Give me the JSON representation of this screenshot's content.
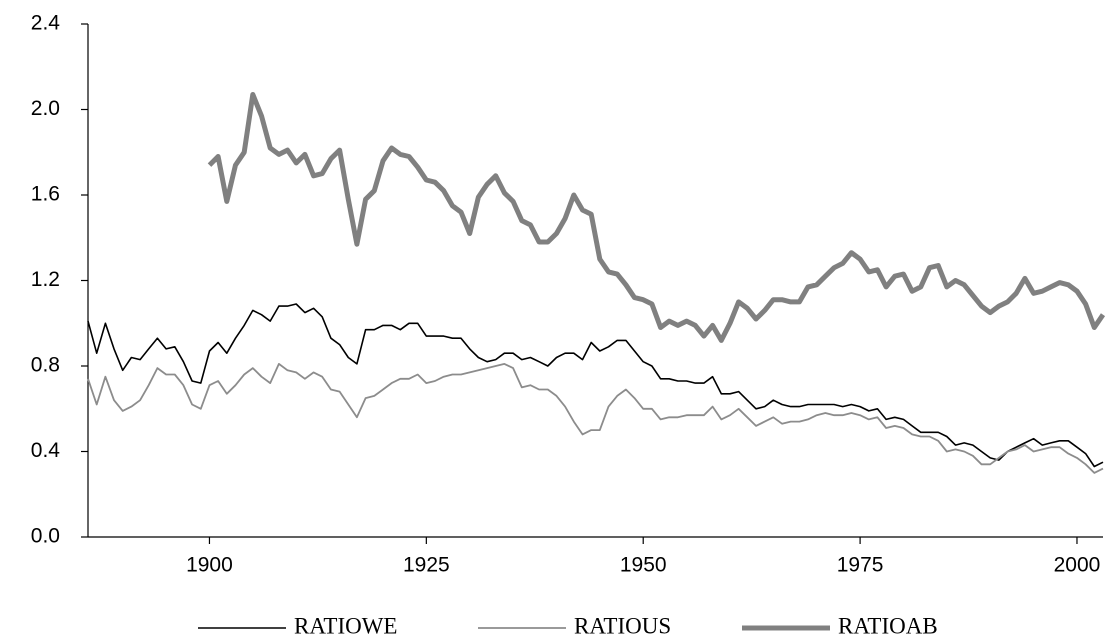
{
  "chart_data": {
    "type": "line",
    "x": [
      1886,
      1887,
      1888,
      1889,
      1890,
      1891,
      1892,
      1893,
      1894,
      1895,
      1896,
      1897,
      1898,
      1899,
      1900,
      1901,
      1902,
      1903,
      1904,
      1905,
      1906,
      1907,
      1908,
      1909,
      1910,
      1911,
      1912,
      1913,
      1914,
      1915,
      1916,
      1917,
      1918,
      1919,
      1920,
      1921,
      1922,
      1923,
      1924,
      1925,
      1926,
      1927,
      1928,
      1929,
      1930,
      1931,
      1932,
      1933,
      1934,
      1935,
      1936,
      1937,
      1938,
      1939,
      1940,
      1941,
      1942,
      1943,
      1944,
      1945,
      1946,
      1947,
      1948,
      1949,
      1950,
      1951,
      1952,
      1953,
      1954,
      1955,
      1956,
      1957,
      1958,
      1959,
      1960,
      1961,
      1962,
      1963,
      1964,
      1965,
      1966,
      1967,
      1968,
      1969,
      1970,
      1971,
      1972,
      1973,
      1974,
      1975,
      1976,
      1977,
      1978,
      1979,
      1980,
      1981,
      1982,
      1983,
      1984,
      1985,
      1986,
      1987,
      1988,
      1989,
      1990,
      1991,
      1992,
      1993,
      1994,
      1995,
      1996,
      1997,
      1998,
      1999,
      2000,
      2001,
      2002,
      2003
    ],
    "series": [
      {
        "name": "RATIOWE",
        "color": "#000000",
        "values": [
          1.01,
          0.86,
          1.0,
          0.88,
          0.78,
          0.84,
          0.83,
          0.88,
          0.93,
          0.88,
          0.89,
          0.82,
          0.73,
          0.72,
          0.87,
          0.91,
          0.86,
          0.93,
          0.99,
          1.06,
          1.04,
          1.01,
          1.08,
          1.08,
          1.09,
          1.05,
          1.07,
          1.03,
          0.93,
          0.9,
          0.84,
          0.81,
          0.97,
          0.97,
          0.99,
          0.99,
          0.97,
          1.0,
          1.0,
          0.94,
          0.94,
          0.94,
          0.93,
          0.93,
          0.88,
          0.84,
          0.82,
          0.83,
          0.86,
          0.86,
          0.83,
          0.84,
          0.82,
          0.8,
          0.84,
          0.86,
          0.86,
          0.83,
          0.91,
          0.87,
          0.89,
          0.92,
          0.92,
          0.87,
          0.82,
          0.8,
          0.74,
          0.74,
          0.73,
          0.73,
          0.72,
          0.72,
          0.75,
          0.67,
          0.67,
          0.68,
          0.64,
          0.6,
          0.61,
          0.64,
          0.62,
          0.61,
          0.61,
          0.62,
          0.62,
          0.62,
          0.62,
          0.61,
          0.62,
          0.61,
          0.59,
          0.6,
          0.55,
          0.56,
          0.55,
          0.52,
          0.49,
          0.49,
          0.49,
          0.47,
          0.43,
          0.44,
          0.43,
          0.4,
          0.37,
          0.36,
          0.4,
          0.42,
          0.44,
          0.46,
          0.43,
          0.44,
          0.45,
          0.45,
          0.42,
          0.39,
          0.33,
          0.35
        ]
      },
      {
        "name": "RATIOUS",
        "color": "#8c8c8c",
        "values": [
          0.74,
          0.62,
          0.75,
          0.64,
          0.59,
          0.61,
          0.64,
          0.71,
          0.79,
          0.76,
          0.76,
          0.71,
          0.62,
          0.6,
          0.71,
          0.73,
          0.67,
          0.71,
          0.76,
          0.79,
          0.75,
          0.72,
          0.81,
          0.78,
          0.77,
          0.74,
          0.77,
          0.75,
          0.69,
          0.68,
          0.62,
          0.56,
          0.65,
          0.66,
          0.69,
          0.72,
          0.74,
          0.74,
          0.76,
          0.72,
          0.73,
          0.75,
          0.76,
          0.76,
          0.77,
          0.78,
          0.79,
          0.8,
          0.81,
          0.79,
          0.7,
          0.71,
          0.69,
          0.69,
          0.66,
          0.61,
          0.54,
          0.48,
          0.5,
          0.5,
          0.61,
          0.66,
          0.69,
          0.65,
          0.6,
          0.6,
          0.55,
          0.56,
          0.56,
          0.57,
          0.57,
          0.57,
          0.61,
          0.55,
          0.57,
          0.6,
          0.56,
          0.52,
          0.54,
          0.56,
          0.53,
          0.54,
          0.54,
          0.55,
          0.57,
          0.58,
          0.57,
          0.57,
          0.58,
          0.57,
          0.55,
          0.56,
          0.51,
          0.52,
          0.51,
          0.48,
          0.47,
          0.47,
          0.45,
          0.4,
          0.41,
          0.4,
          0.38,
          0.34,
          0.34,
          0.37,
          0.4,
          0.41,
          0.43,
          0.4,
          0.41,
          0.42,
          0.42,
          0.39,
          0.37,
          0.34,
          0.3,
          0.32
        ]
      },
      {
        "name": "RATIOAB",
        "color": "#808080",
        "values": [
          null,
          null,
          null,
          null,
          null,
          null,
          null,
          null,
          null,
          null,
          null,
          null,
          null,
          null,
          1.74,
          1.78,
          1.57,
          1.74,
          1.8,
          2.07,
          1.97,
          1.82,
          1.79,
          1.81,
          1.75,
          1.79,
          1.69,
          1.7,
          1.77,
          1.81,
          1.58,
          1.37,
          1.58,
          1.62,
          1.76,
          1.82,
          1.79,
          1.78,
          1.73,
          1.67,
          1.66,
          1.62,
          1.55,
          1.52,
          1.42,
          1.59,
          1.65,
          1.69,
          1.61,
          1.57,
          1.48,
          1.46,
          1.38,
          1.38,
          1.42,
          1.49,
          1.6,
          1.53,
          1.51,
          1.3,
          1.24,
          1.23,
          1.18,
          1.12,
          1.11,
          1.09,
          0.98,
          1.01,
          0.99,
          1.01,
          0.99,
          0.94,
          0.99,
          0.92,
          1.0,
          1.1,
          1.07,
          1.02,
          1.06,
          1.11,
          1.11,
          1.1,
          1.1,
          1.17,
          1.18,
          1.22,
          1.26,
          1.28,
          1.33,
          1.3,
          1.24,
          1.25,
          1.17,
          1.22,
          1.23,
          1.15,
          1.17,
          1.26,
          1.27,
          1.17,
          1.2,
          1.18,
          1.13,
          1.08,
          1.05,
          1.08,
          1.1,
          1.14,
          1.21,
          1.14,
          1.15,
          1.17,
          1.19,
          1.18,
          1.15,
          1.09,
          0.98,
          1.04
        ]
      }
    ],
    "xlim": [
      1886,
      2003
    ],
    "xticks": [
      1900,
      1925,
      1950,
      1975,
      2000
    ],
    "ylim": [
      0,
      2.4
    ],
    "yticks": [
      {
        "value": 0,
        "label": "0.0"
      },
      0.4,
      0.8,
      1.2,
      1.6,
      {
        "value": 2,
        "label": "2.0"
      },
      2.4
    ],
    "grid": false,
    "legend": "bottom"
  }
}
